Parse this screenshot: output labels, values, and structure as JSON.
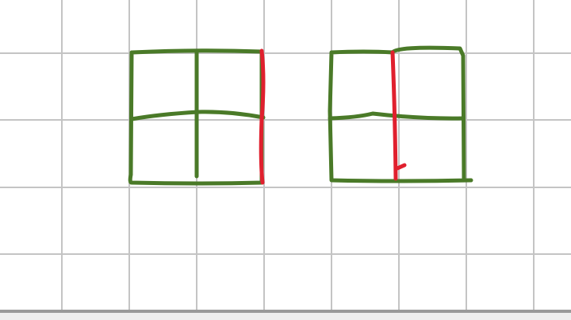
{
  "colors": {
    "grid": "#c4c4c4",
    "green_stroke": "#4a7a28",
    "red_stroke": "#e0202e",
    "bottom_bar": "#9a9a9a"
  },
  "drawing": {
    "description_free": true
  }
}
